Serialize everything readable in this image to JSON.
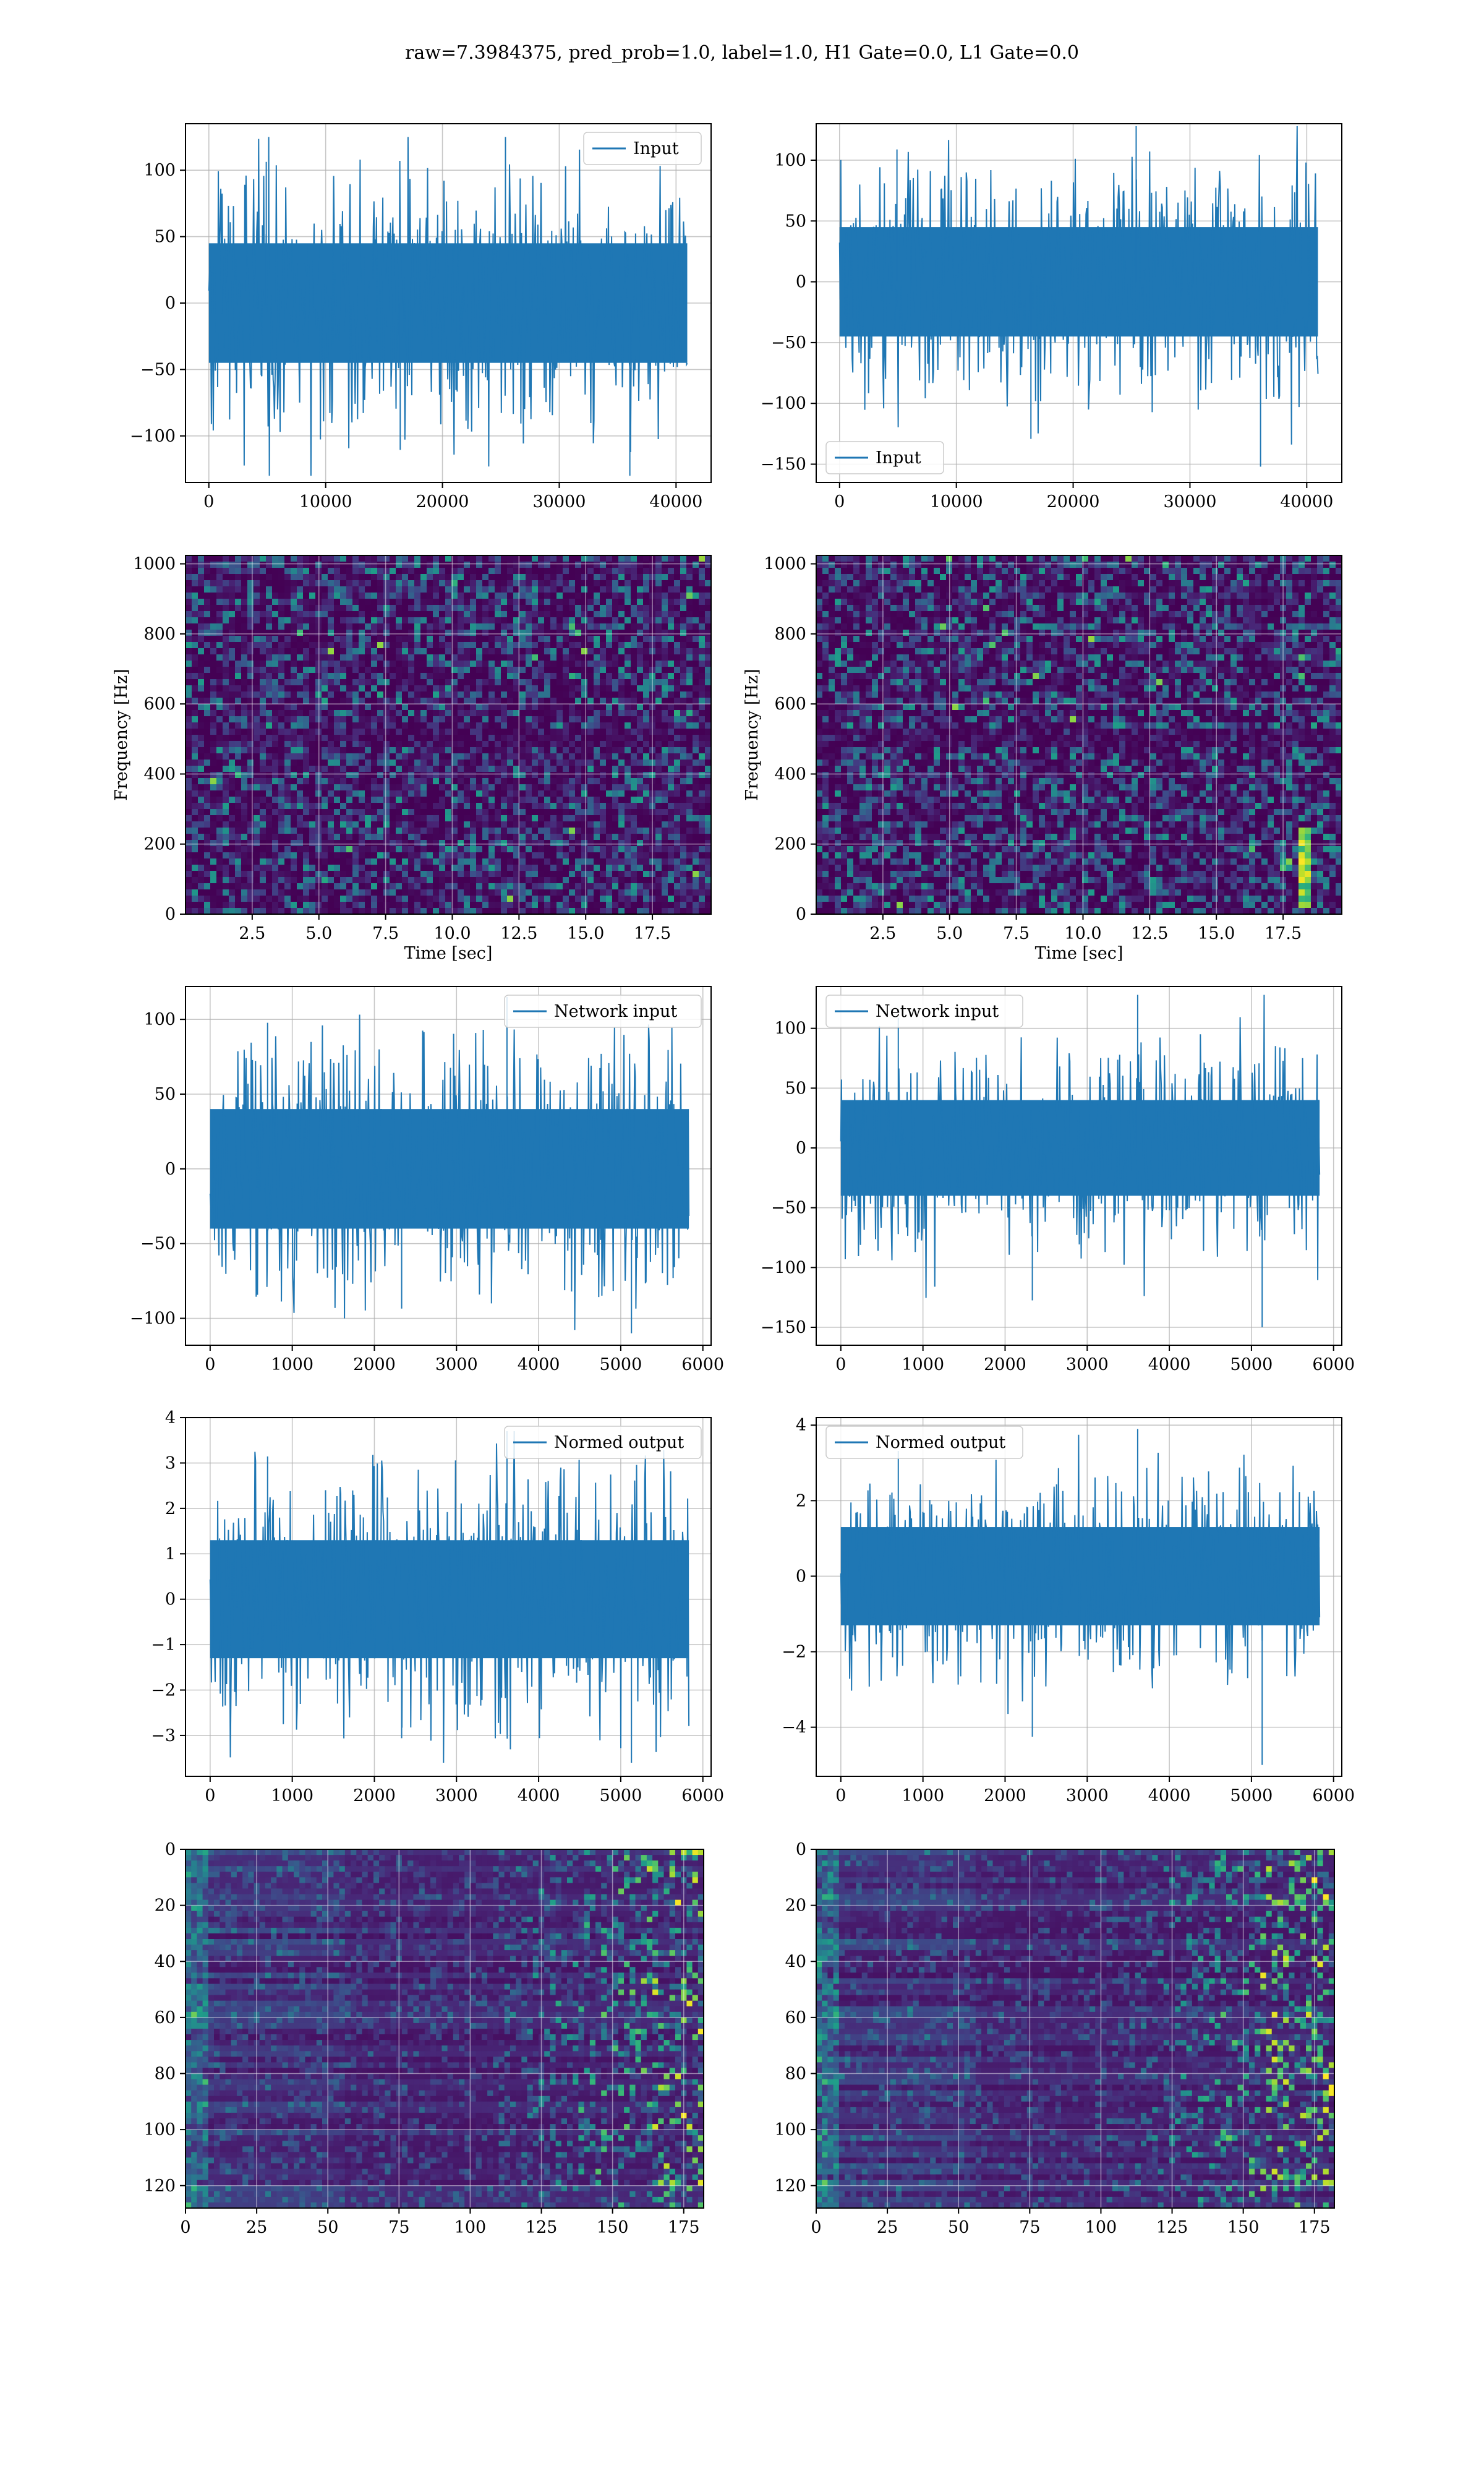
{
  "figure": {
    "suptitle": "raw=7.3984375, pred_prob=1.0, label=1.0, H1 Gate=0.0, L1 Gate=0.0",
    "colors": {
      "line": "#1f77b4",
      "grid": "#b0b0b0",
      "viridis_low": "#440154",
      "viridis_high": "#fde725"
    }
  },
  "chart_data": [
    {
      "id": "input-h1",
      "type": "line",
      "title": "",
      "xlabel": "",
      "ylabel": "",
      "xlim": [
        -2000,
        43000
      ],
      "ylim": [
        -135,
        135
      ],
      "xticks": [
        0,
        10000,
        20000,
        30000,
        40000
      ],
      "yticks": [
        -100,
        -50,
        0,
        50,
        100
      ],
      "xtick_labels": [
        "0",
        "10000",
        "20000",
        "30000",
        "40000"
      ],
      "ytick_labels": [
        "−100",
        "−50",
        "0",
        "50",
        "100"
      ],
      "series": [
        {
          "name": "Input",
          "x_range": [
            0,
            40960
          ],
          "y_core": [
            -45,
            45
          ],
          "y_peak": [
            -130,
            125
          ]
        }
      ],
      "legend": "upper right",
      "grid": true
    },
    {
      "id": "input-l1",
      "type": "line",
      "title": "",
      "xlabel": "",
      "ylabel": "",
      "xlim": [
        -2000,
        43000
      ],
      "ylim": [
        -165,
        130
      ],
      "xticks": [
        0,
        10000,
        20000,
        30000,
        40000
      ],
      "yticks": [
        -150,
        -100,
        -50,
        0,
        50,
        100
      ],
      "xtick_labels": [
        "0",
        "10000",
        "20000",
        "30000",
        "40000"
      ],
      "ytick_labels": [
        "−150",
        "−100",
        "−50",
        "0",
        "50",
        "100"
      ],
      "series": [
        {
          "name": "Input",
          "x_range": [
            0,
            40960
          ],
          "y_core": [
            -45,
            45
          ],
          "y_peak": [
            -152,
            128
          ]
        }
      ],
      "legend": "lower left",
      "grid": true
    },
    {
      "id": "spec-h1",
      "type": "heatmap",
      "title": "",
      "xlabel": "Time [sec]",
      "ylabel": "Frequency [Hz]",
      "xlim": [
        0,
        19.7
      ],
      "ylim": [
        0,
        1024
      ],
      "xticks": [
        2.5,
        5.0,
        7.5,
        10.0,
        12.5,
        15.0,
        17.5
      ],
      "yticks": [
        0,
        200,
        400,
        600,
        800,
        1000
      ],
      "xtick_labels": [
        "2.5",
        "5.0",
        "7.5",
        "10.0",
        "12.5",
        "15.0",
        "17.5"
      ],
      "ytick_labels": [
        "0",
        "200",
        "400",
        "600",
        "800",
        "1000"
      ],
      "colormap": "viridis",
      "grid": true
    },
    {
      "id": "spec-l1",
      "type": "heatmap",
      "title": "",
      "xlabel": "Time [sec]",
      "ylabel": "Frequency [Hz]",
      "xlim": [
        0,
        19.7
      ],
      "ylim": [
        0,
        1024
      ],
      "xticks": [
        2.5,
        5.0,
        7.5,
        10.0,
        12.5,
        15.0,
        17.5
      ],
      "yticks": [
        0,
        200,
        400,
        600,
        800,
        1000
      ],
      "xtick_labels": [
        "2.5",
        "5.0",
        "7.5",
        "10.0",
        "12.5",
        "15.0",
        "17.5"
      ],
      "ytick_labels": [
        "0",
        "200",
        "400",
        "600",
        "800",
        "1000"
      ],
      "colormap": "viridis",
      "bright_track": {
        "time_sec": [
          17.9,
          18.3
        ],
        "freq_hz": [
          40,
          260
        ]
      },
      "grid": true
    },
    {
      "id": "net-h1",
      "type": "line",
      "title": "",
      "xlabel": "",
      "ylabel": "",
      "xlim": [
        -300,
        6100
      ],
      "ylim": [
        -118,
        122
      ],
      "xticks": [
        0,
        1000,
        2000,
        3000,
        4000,
        5000,
        6000
      ],
      "yticks": [
        -100,
        -50,
        0,
        50,
        100
      ],
      "xtick_labels": [
        "0",
        "1000",
        "2000",
        "3000",
        "4000",
        "5000",
        "6000"
      ],
      "ytick_labels": [
        "−100",
        "−50",
        "0",
        "50",
        "100"
      ],
      "series": [
        {
          "name": "Network input",
          "x_range": [
            0,
            5830
          ],
          "y_core": [
            -40,
            40
          ],
          "y_peak": [
            -110,
            115
          ]
        }
      ],
      "legend": "upper right",
      "grid": true
    },
    {
      "id": "net-l1",
      "type": "line",
      "title": "",
      "xlabel": "",
      "ylabel": "",
      "xlim": [
        -300,
        6100
      ],
      "ylim": [
        -165,
        135
      ],
      "xticks": [
        0,
        1000,
        2000,
        3000,
        4000,
        5000,
        6000
      ],
      "yticks": [
        -150,
        -100,
        -50,
        0,
        50,
        100
      ],
      "xtick_labels": [
        "0",
        "1000",
        "2000",
        "3000",
        "4000",
        "5000",
        "6000"
      ],
      "ytick_labels": [
        "−150",
        "−100",
        "−50",
        "0",
        "50",
        "100"
      ],
      "series": [
        {
          "name": "Network input",
          "x_range": [
            0,
            5830
          ],
          "y_core": [
            -40,
            40
          ],
          "y_peak": [
            -150,
            128
          ]
        }
      ],
      "legend": "upper left",
      "grid": true
    },
    {
      "id": "norm-h1",
      "type": "line",
      "title": "",
      "xlabel": "",
      "ylabel": "",
      "xlim": [
        -300,
        6100
      ],
      "ylim": [
        -3.9,
        4.0
      ],
      "xticks": [
        0,
        1000,
        2000,
        3000,
        4000,
        5000,
        6000
      ],
      "yticks": [
        -3,
        -2,
        -1,
        0,
        1,
        2,
        3,
        4
      ],
      "xtick_labels": [
        "0",
        "1000",
        "2000",
        "3000",
        "4000",
        "5000",
        "6000"
      ],
      "ytick_labels": [
        "−3",
        "−2",
        "−1",
        "0",
        "1",
        "2",
        "3",
        "4"
      ],
      "series": [
        {
          "name": "Normed output",
          "x_range": [
            0,
            5830
          ],
          "y_core": [
            -1.3,
            1.3
          ],
          "y_peak": [
            -3.6,
            3.7
          ]
        }
      ],
      "legend": "upper right",
      "grid": true
    },
    {
      "id": "norm-l1",
      "type": "line",
      "title": "",
      "xlabel": "",
      "ylabel": "",
      "xlim": [
        -300,
        6100
      ],
      "ylim": [
        -5.3,
        4.2
      ],
      "xticks": [
        0,
        1000,
        2000,
        3000,
        4000,
        5000,
        6000
      ],
      "yticks": [
        -4,
        -2,
        0,
        2,
        4
      ],
      "xtick_labels": [
        "0",
        "1000",
        "2000",
        "3000",
        "4000",
        "5000",
        "6000"
      ],
      "ytick_labels": [
        "−4",
        "−2",
        "0",
        "2",
        "4"
      ],
      "series": [
        {
          "name": "Normed output",
          "x_range": [
            0,
            5830
          ],
          "y_core": [
            -1.3,
            1.3
          ],
          "y_peak": [
            -5.0,
            3.9
          ]
        }
      ],
      "legend": "upper left",
      "grid": true
    },
    {
      "id": "feat-h1",
      "type": "heatmap",
      "title": "",
      "xlabel": "",
      "ylabel": "",
      "xlim": [
        0,
        182
      ],
      "ylim": [
        128,
        0
      ],
      "xticks": [
        0,
        25,
        50,
        75,
        100,
        125,
        150,
        175
      ],
      "yticks": [
        0,
        20,
        40,
        60,
        80,
        100,
        120
      ],
      "xtick_labels": [
        "0",
        "25",
        "50",
        "75",
        "100",
        "125",
        "150",
        "175"
      ],
      "ytick_labels": [
        "0",
        "20",
        "40",
        "60",
        "80",
        "100",
        "120"
      ],
      "colormap": "viridis",
      "grid": true
    },
    {
      "id": "feat-l1",
      "type": "heatmap",
      "title": "",
      "xlabel": "",
      "ylabel": "",
      "xlim": [
        0,
        182
      ],
      "ylim": [
        128,
        0
      ],
      "xticks": [
        0,
        25,
        50,
        75,
        100,
        125,
        150,
        175
      ],
      "yticks": [
        0,
        20,
        40,
        60,
        80,
        100,
        120
      ],
      "xtick_labels": [
        "0",
        "25",
        "50",
        "75",
        "100",
        "125",
        "150",
        "175"
      ],
      "ytick_labels": [
        "0",
        "20",
        "40",
        "60",
        "80",
        "100",
        "120"
      ],
      "colormap": "viridis",
      "grid": true
    }
  ]
}
